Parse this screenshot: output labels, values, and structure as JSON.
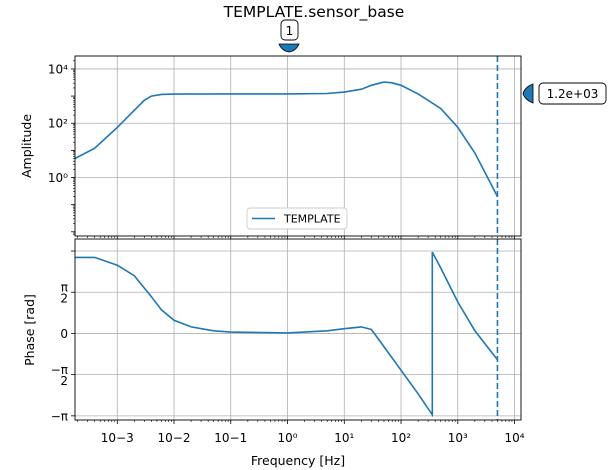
{
  "chart_data": [
    {
      "type": "line",
      "panel": "amplitude",
      "title": "TEMPLATE.sensor_base",
      "xlabel": "",
      "ylabel": "Amplitude",
      "xscale": "log",
      "yscale": "log",
      "xlim": [
        0.00018,
        13000
      ],
      "ylim": [
        0.007,
        30000
      ],
      "x_ticks": [
        {
          "value": 0.001,
          "label": "10−3"
        },
        {
          "value": 0.01,
          "label": "10−2"
        },
        {
          "value": 0.1,
          "label": "10−1"
        },
        {
          "value": 1,
          "label": "10⁰"
        },
        {
          "value": 10,
          "label": "10¹"
        },
        {
          "value": 100,
          "label": "10²"
        },
        {
          "value": 1000,
          "label": "10³"
        },
        {
          "value": 10000,
          "label": "10⁴"
        }
      ],
      "y_ticks": [
        {
          "value": 1,
          "label": "10⁰"
        },
        {
          "value": 100,
          "label": "10²"
        },
        {
          "value": 10000,
          "label": "10⁴"
        }
      ],
      "grid": true,
      "legend": {
        "placement": "lower-center",
        "entries": [
          "TEMPLATE"
        ]
      },
      "series": [
        {
          "name": "TEMPLATE",
          "color": "#1f77b4",
          "x": [
            0.00018,
            0.0004,
            0.001,
            0.002,
            0.003,
            0.004,
            0.006,
            0.01,
            0.1,
            1,
            5,
            10,
            20,
            30,
            50,
            70,
            100,
            200,
            500,
            1000,
            2000,
            5000
          ],
          "y": [
            5,
            12,
            70,
            300,
            700,
            1000,
            1150,
            1180,
            1200,
            1200,
            1250,
            1400,
            1800,
            2500,
            3300,
            3100,
            2500,
            1200,
            350,
            70,
            8,
            0.2
          ]
        }
      ],
      "reference_line": {
        "x": 5000,
        "style": "dashed",
        "color": "#1f77b4"
      },
      "annotations": [
        {
          "text": "1",
          "x": 1,
          "position": "above-plot"
        },
        {
          "text": "1.2e+03",
          "y": 1200,
          "position": "right-of-plot"
        }
      ]
    },
    {
      "type": "line",
      "panel": "phase",
      "title": "",
      "xlabel": "Frequency [Hz]",
      "ylabel": "Phase [rad]",
      "xscale": "log",
      "yscale": "linear",
      "xlim": [
        0.00018,
        13000
      ],
      "ylim": [
        -3.3,
        3.6
      ],
      "x_ticks": [
        {
          "value": 0.001,
          "label": "10−3"
        },
        {
          "value": 0.01,
          "label": "10−2"
        },
        {
          "value": 0.1,
          "label": "10−1"
        },
        {
          "value": 1,
          "label": "10⁰"
        },
        {
          "value": 10,
          "label": "10¹"
        },
        {
          "value": 100,
          "label": "10²"
        },
        {
          "value": 1000,
          "label": "10³"
        },
        {
          "value": 10000,
          "label": "10⁴"
        }
      ],
      "y_ticks": [
        {
          "value": -3.14159,
          "label": "−π"
        },
        {
          "value": -1.5708,
          "label": "−π/2"
        },
        {
          "value": 0,
          "label": "0"
        },
        {
          "value": 1.5708,
          "label": "π/2"
        },
        {
          "value": 3.14159,
          "label": ""
        }
      ],
      "grid": true,
      "series": [
        {
          "name": "TEMPLATE",
          "color": "#1f77b4",
          "x": [
            0.00018,
            0.0004,
            0.001,
            0.002,
            0.004,
            0.006,
            0.01,
            0.02,
            0.05,
            0.1,
            1,
            5,
            10,
            20,
            30,
            50,
            100,
            200,
            355,
            355,
            500,
            1000,
            2000,
            5000
          ],
          "y": [
            2.9,
            2.9,
            2.6,
            2.2,
            1.4,
            0.9,
            0.5,
            0.25,
            0.1,
            0.05,
            0.02,
            0.1,
            0.18,
            0.25,
            0.15,
            -0.5,
            -1.4,
            -2.3,
            -3.1,
            3.1,
            2.5,
            1.2,
            0.1,
            -1.0
          ]
        }
      ],
      "reference_line": {
        "x": 5000,
        "style": "dashed",
        "color": "#1f77b4"
      }
    }
  ]
}
